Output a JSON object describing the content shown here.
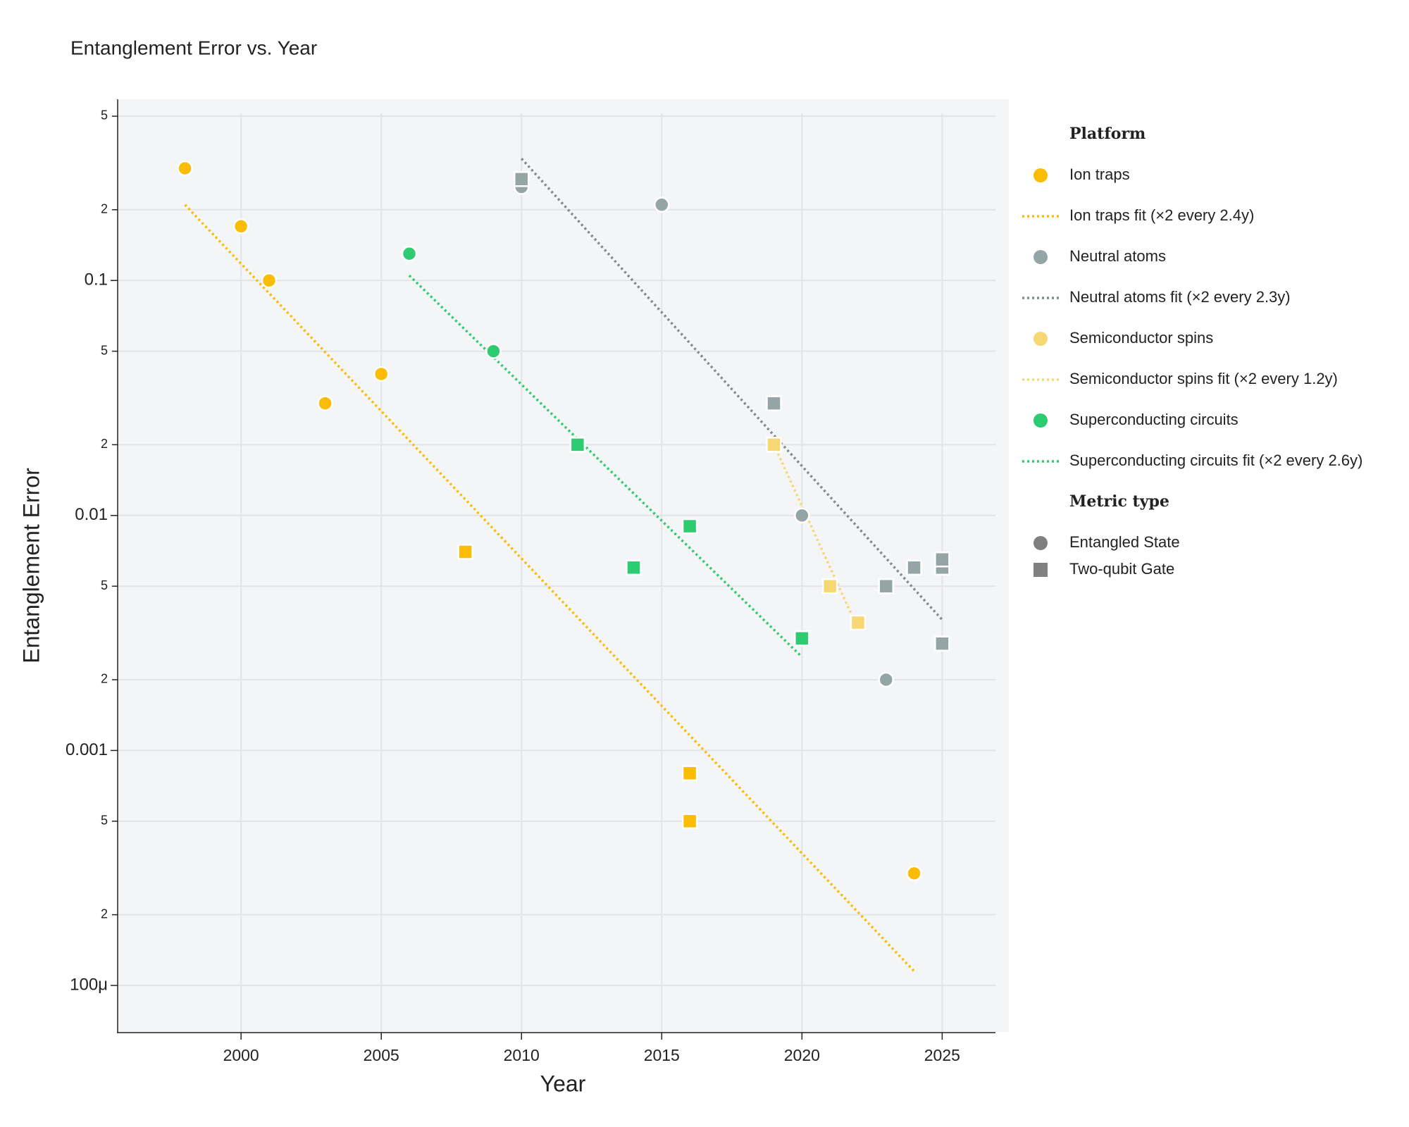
{
  "chart_data": {
    "type": "scatter",
    "title": "Entanglement Error vs. Year",
    "x_label": "Year",
    "y_label": "Entanglement Error",
    "log_y": true,
    "grid": true,
    "xlim": [
      1995.6,
      2026.9
    ],
    "xticks": [
      2000,
      2005,
      2010,
      2015,
      2020,
      2025
    ],
    "ylim": [
      6.3e-05,
      0.59
    ],
    "yticks": [
      {
        "value": 0.5,
        "label": "5"
      },
      {
        "value": 0.2,
        "label": "2"
      },
      0.1,
      {
        "value": 0.05,
        "label": "5"
      },
      {
        "value": 0.02,
        "label": "2"
      },
      0.01,
      {
        "value": 0.005,
        "label": "5"
      },
      {
        "value": 0.002,
        "label": "2"
      },
      0.001,
      {
        "value": 0.0005,
        "label": "5"
      },
      {
        "value": 0.0002,
        "label": "2"
      },
      {
        "value": 0.0001,
        "label": "100μ"
      }
    ],
    "legend_title": "Platform",
    "metric_legend_title": "Metric type",
    "metric_types": [
      {
        "name": "Entangled State",
        "symbol": "circle"
      },
      {
        "name": "Two-qubit Gate",
        "symbol": "square"
      }
    ],
    "series": [
      {
        "name": "Ion traps",
        "color": "#fbbc05",
        "x": [
          1998,
          2000,
          2001,
          2003,
          2005,
          2024,
          2008,
          2016,
          2016
        ],
        "values": [
          0.3,
          0.17,
          0.1,
          0.03,
          0.04,
          0.0003,
          0.007,
          0.0008,
          0.0005
        ],
        "symbols": [
          "circle",
          "circle",
          "circle",
          "circle",
          "circle",
          "circle",
          "square",
          "square",
          "square"
        ],
        "fit": {
          "name": "Ion traps fit (×2 every 2.4y)",
          "color": "#fbbc05",
          "x": [
            1998,
            2024
          ],
          "values": [
            0.21,
            0.000115
          ]
        }
      },
      {
        "name": "Neutral atoms",
        "color": "#95a5a6",
        "x": [
          2010,
          2015,
          2020,
          2023,
          2010,
          2019,
          2023,
          2024,
          2025,
          2025,
          2025
        ],
        "values": [
          0.25,
          0.21,
          0.01,
          0.002,
          0.27,
          0.03,
          0.005,
          0.006,
          0.006,
          0.0065,
          0.00285
        ],
        "symbols": [
          "circle",
          "circle",
          "circle",
          "circle",
          "square",
          "square",
          "square",
          "square",
          "square",
          "square",
          "square"
        ],
        "fit": {
          "name": "Neutral atoms fit (×2 every 2.3y)",
          "color": "#7f8c8d",
          "x": [
            2010,
            2025
          ],
          "values": [
            0.33,
            0.0036
          ]
        }
      },
      {
        "name": "Semiconductor spins",
        "color": "#f7d774",
        "x": [
          2019,
          2021,
          2022
        ],
        "values": [
          0.02,
          0.005,
          0.0035
        ],
        "symbols": [
          "square",
          "square",
          "square"
        ],
        "fit": {
          "name": "Semiconductor spins fit (×2 every 1.2y)",
          "color": "#f7d774",
          "x": [
            2019,
            2022
          ],
          "values": [
            0.02,
            0.0033
          ]
        }
      },
      {
        "name": "Superconducting circuits",
        "color": "#2ecc71",
        "x": [
          2006,
          2009,
          2012,
          2014,
          2016,
          2020
        ],
        "values": [
          0.13,
          0.05,
          0.02,
          0.006,
          0.009,
          0.003
        ],
        "symbols": [
          "circle",
          "circle",
          "square",
          "square",
          "square",
          "square"
        ],
        "fit": {
          "name": "Superconducting circuits fit (×2 every 2.6y)",
          "color": "#2ecc71",
          "x": [
            2006,
            2020
          ],
          "values": [
            0.105,
            0.0025
          ]
        }
      }
    ]
  }
}
